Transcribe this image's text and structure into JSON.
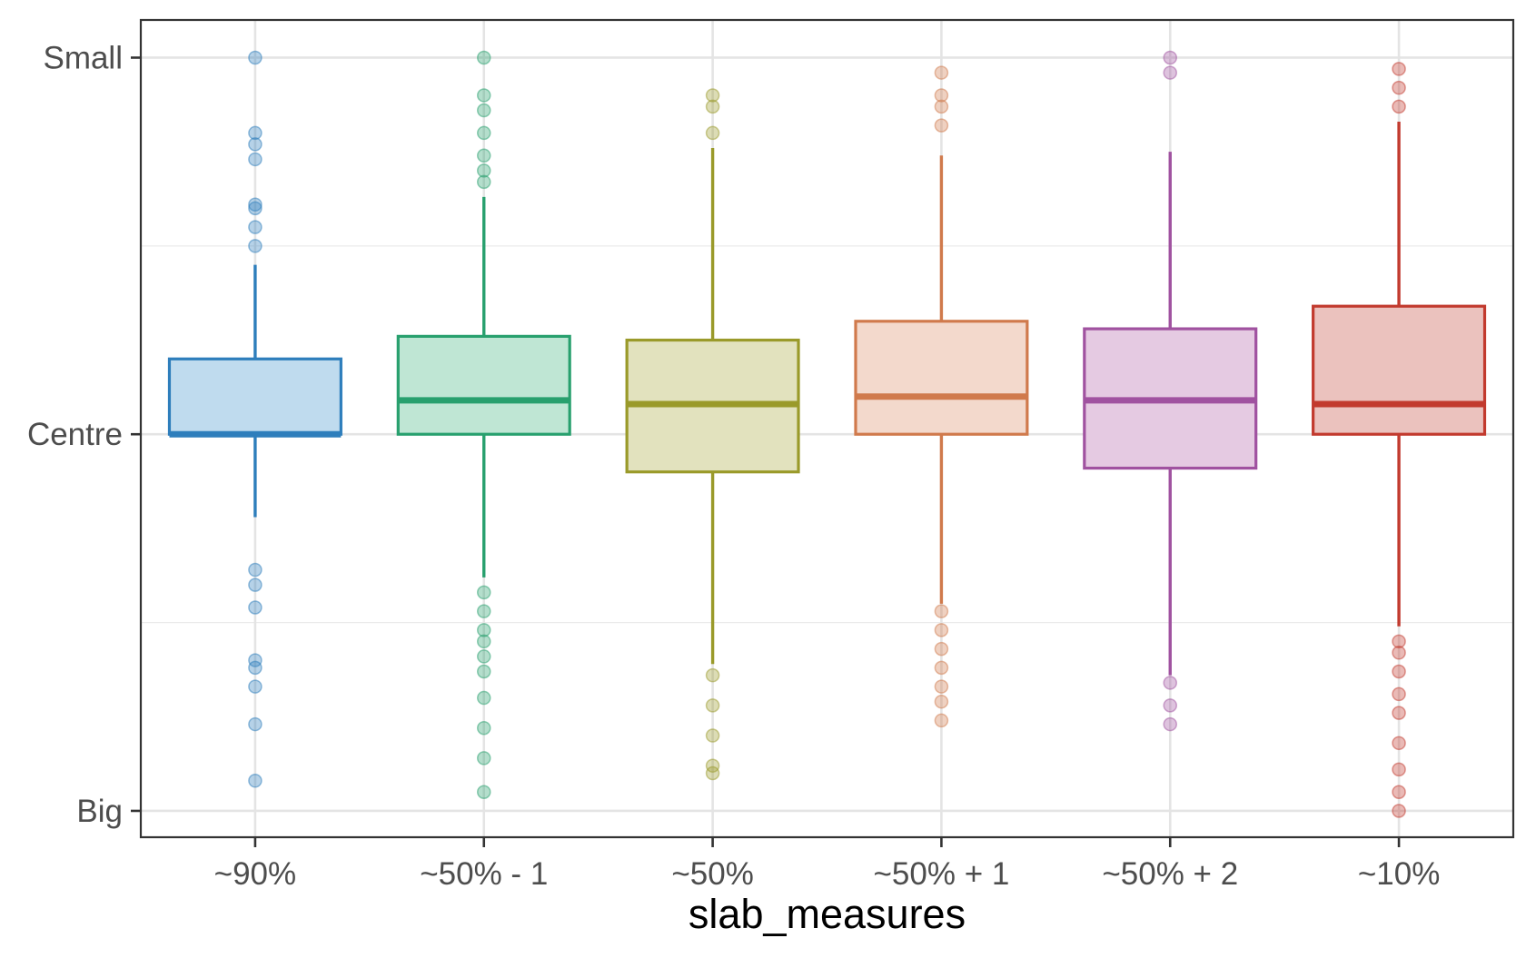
{
  "chart_data": {
    "type": "boxplot",
    "xlabel": "slab_measures",
    "ylabel": "",
    "y_ticks": [
      {
        "label": "Small",
        "value": 1.0
      },
      {
        "label": "Centre",
        "value": 0.0
      },
      {
        "label": "Big",
        "value": -1.0
      }
    ],
    "ylim": [
      -1.07,
      1.1
    ],
    "grid": true,
    "legend": "none",
    "categories": [
      "~90%",
      "~50% - 1",
      "~50%",
      "~50% + 1",
      "~50% + 2",
      "~10%"
    ],
    "colors": [
      "#2E7EBC",
      "#28A06E",
      "#9A9A2A",
      "#D07A4C",
      "#A052A0",
      "#C23A2E"
    ],
    "fills": [
      "#BFDBEE",
      "#BFE6D4",
      "#E2E2BE",
      "#F3D9CC",
      "#E5CAE2",
      "#EBC2BE"
    ],
    "boxes": [
      {
        "q1": 0.0,
        "median": 0.0,
        "q3": 0.2,
        "whisker_low": -0.22,
        "whisker_high": 0.45,
        "outliers": [
          1.0,
          0.8,
          0.77,
          0.73,
          0.61,
          0.6,
          0.55,
          0.5,
          -0.36,
          -0.4,
          -0.46,
          -0.6,
          -0.62,
          -0.67,
          -0.77,
          -0.92
        ]
      },
      {
        "q1": 0.0,
        "median": 0.09,
        "q3": 0.26,
        "whisker_low": -0.38,
        "whisker_high": 0.63,
        "outliers": [
          1.0,
          0.9,
          0.86,
          0.8,
          0.74,
          0.7,
          0.67,
          -0.42,
          -0.47,
          -0.52,
          -0.55,
          -0.59,
          -0.63,
          -0.7,
          -0.78,
          -0.86,
          -0.95
        ]
      },
      {
        "q1": -0.1,
        "median": 0.08,
        "q3": 0.25,
        "whisker_low": -0.61,
        "whisker_high": 0.76,
        "outliers": [
          0.9,
          0.87,
          0.8,
          -0.64,
          -0.72,
          -0.8,
          -0.88,
          -0.9
        ]
      },
      {
        "q1": 0.0,
        "median": 0.1,
        "q3": 0.3,
        "whisker_low": -0.45,
        "whisker_high": 0.74,
        "outliers": [
          0.96,
          0.9,
          0.87,
          0.82,
          -0.47,
          -0.52,
          -0.57,
          -0.62,
          -0.67,
          -0.71,
          -0.76
        ]
      },
      {
        "q1": -0.09,
        "median": 0.09,
        "q3": 0.28,
        "whisker_low": -0.64,
        "whisker_high": 0.75,
        "outliers": [
          1.0,
          0.96,
          -0.66,
          -0.72,
          -0.77
        ]
      },
      {
        "q1": 0.0,
        "median": 0.08,
        "q3": 0.34,
        "whisker_low": -0.51,
        "whisker_high": 0.83,
        "outliers": [
          0.97,
          0.92,
          0.87,
          -0.55,
          -0.58,
          -0.63,
          -0.69,
          -0.74,
          -0.82,
          -0.89,
          -0.95,
          -1.0
        ]
      }
    ]
  }
}
